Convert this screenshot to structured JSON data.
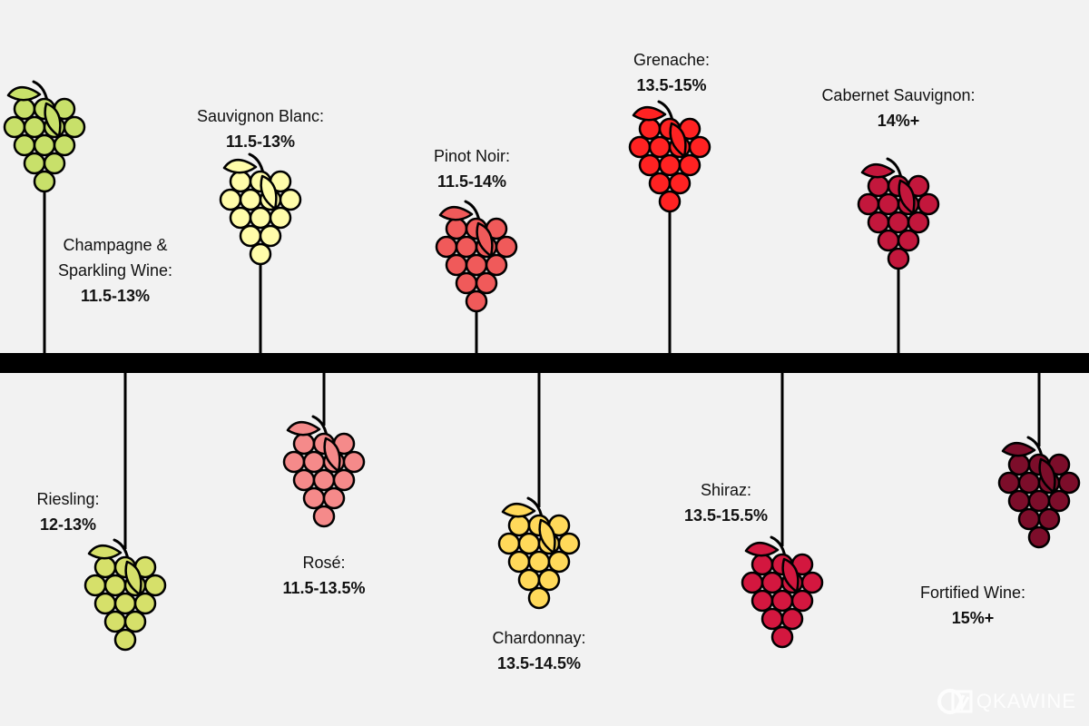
{
  "background": "#f2f2f2",
  "timeline_color": "#000000",
  "wines": [
    {
      "name": "Champagne & Sparkling Wine:",
      "name_lines": [
        "Champagne &",
        "Sparkling Wine:"
      ],
      "abv": "11.5-13%",
      "color": "#c8e06a",
      "side": "top"
    },
    {
      "name": "Sauvignon Blanc:",
      "name_lines": [
        "Sauvignon Blanc:"
      ],
      "abv": "11.5-13%",
      "color": "#fffcaa",
      "side": "top"
    },
    {
      "name": "Pinot Noir:",
      "name_lines": [
        "Pinot Noir:"
      ],
      "abv": "11.5-14%",
      "color": "#f05a5a",
      "side": "top"
    },
    {
      "name": "Grenache:",
      "name_lines": [
        "Grenache:"
      ],
      "abv": "13.5-15%",
      "color": "#ff2222",
      "side": "top"
    },
    {
      "name": "Cabernet Sauvignon:",
      "name_lines": [
        "Cabernet Sauvignon:"
      ],
      "abv": "14%+",
      "color": "#c3173c",
      "side": "top"
    },
    {
      "name": "Riesling:",
      "name_lines": [
        "Riesling:"
      ],
      "abv": "12-13%",
      "color": "#d6e06a",
      "side": "bottom"
    },
    {
      "name": "Rosé:",
      "name_lines": [
        "Rosé:"
      ],
      "abv": "11.5-13.5%",
      "color": "#f58a8a",
      "side": "bottom"
    },
    {
      "name": "Chardonnay:",
      "name_lines": [
        "Chardonnay:"
      ],
      "abv": "13.5-14.5%",
      "color": "#ffd95a",
      "side": "bottom"
    },
    {
      "name": "Shiraz:",
      "name_lines": [
        "Shiraz:"
      ],
      "abv": "13.5-15.5%",
      "color": "#d3173f",
      "side": "bottom"
    },
    {
      "name": "Fortified Wine:",
      "name_lines": [
        "Fortified Wine:"
      ],
      "abv": "15%+",
      "color": "#7c0d2a",
      "side": "bottom"
    }
  ],
  "logo": {
    "text": "QKAWINE"
  }
}
